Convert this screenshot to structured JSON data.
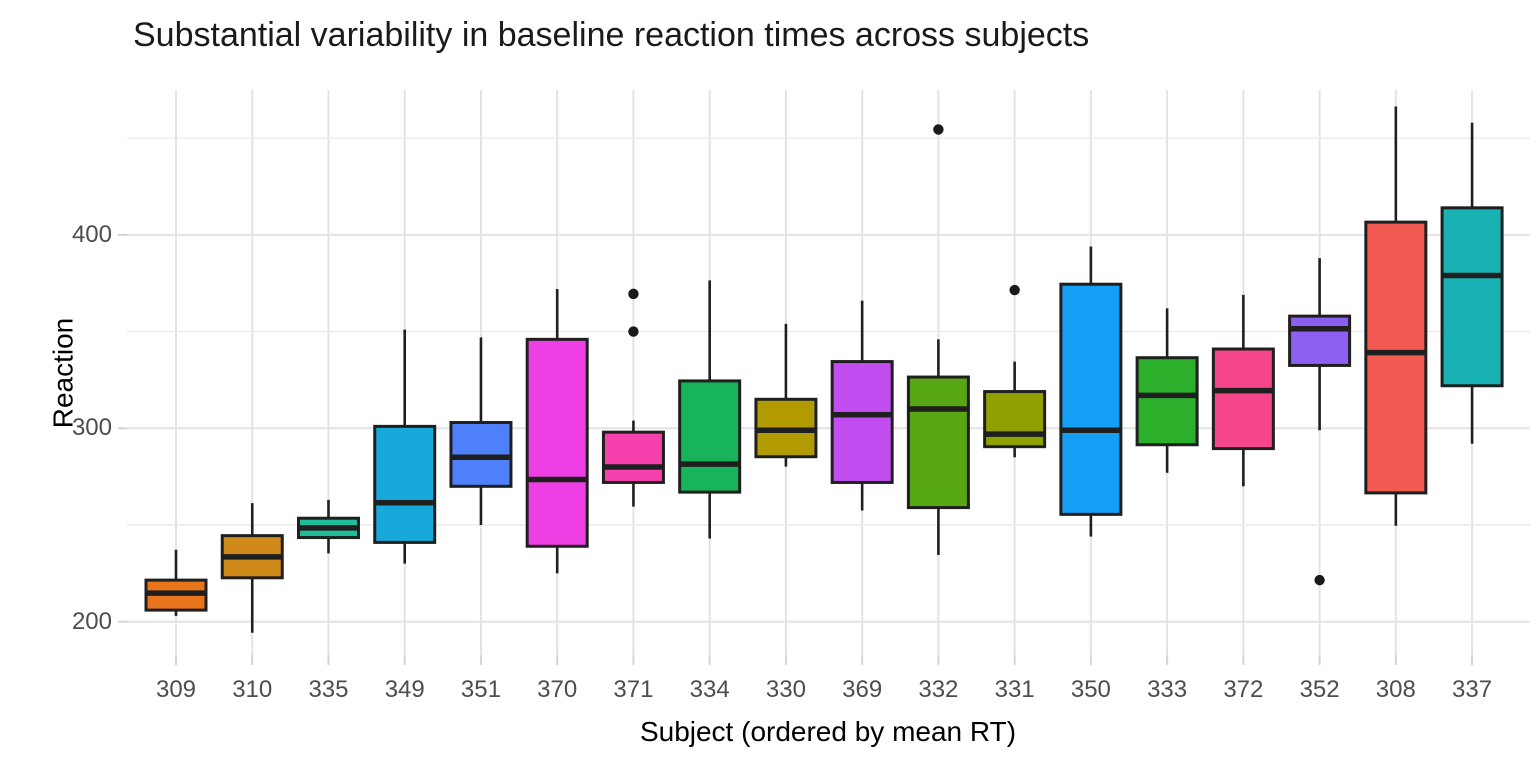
{
  "title": "Substantial variability in baseline reaction times across subjects",
  "chart_data": {
    "type": "box",
    "title": "Substantial variability in baseline reaction times across subjects",
    "xlabel": "Subject (ordered by mean RT)",
    "ylabel": "Reaction",
    "ylim": [
      183,
      474
    ],
    "y_major_ticks": [
      200,
      300,
      400
    ],
    "y_minor_ticks": [
      250,
      350,
      450
    ],
    "grid": "major-and-minor, light gray on white",
    "legend_position": "none",
    "categories": [
      "309",
      "310",
      "335",
      "349",
      "351",
      "370",
      "371",
      "334",
      "330",
      "369",
      "332",
      "331",
      "350",
      "333",
      "372",
      "352",
      "308",
      "337"
    ],
    "series": [
      {
        "subject": "309",
        "color": "#E8751C",
        "whisker_low": 203.0,
        "q1": 206.0,
        "median": 214.8,
        "q3": 221.5,
        "whisker_high": 237.2,
        "outliers": []
      },
      {
        "subject": "310",
        "color": "#D08A1A",
        "whisker_low": 194.3,
        "q1": 222.7,
        "median": 233.5,
        "q3": 244.5,
        "whisker_high": 261.3,
        "outliers": []
      },
      {
        "subject": "335",
        "color": "#1FBE9A",
        "whisker_low": 235.3,
        "q1": 243.5,
        "median": 248.5,
        "q3": 253.5,
        "whisker_high": 263.0,
        "outliers": []
      },
      {
        "subject": "349",
        "color": "#16A9D9",
        "whisker_low": 230.0,
        "q1": 241.0,
        "median": 261.5,
        "q3": 301.0,
        "whisker_high": 351.0,
        "outliers": []
      },
      {
        "subject": "351",
        "color": "#4F80FA",
        "whisker_low": 250.0,
        "q1": 270.0,
        "median": 285.0,
        "q3": 303.0,
        "whisker_high": 347.0,
        "outliers": []
      },
      {
        "subject": "370",
        "color": "#EE3FE5",
        "whisker_low": 225.0,
        "q1": 239.0,
        "median": 273.5,
        "q3": 346.0,
        "whisker_high": 372.0,
        "outliers": []
      },
      {
        "subject": "371",
        "color": "#F540AE",
        "whisker_low": 259.5,
        "q1": 272.0,
        "median": 280.0,
        "q3": 298.0,
        "whisker_high": 304.0,
        "outliers": [
          350.0,
          369.5
        ]
      },
      {
        "subject": "334",
        "color": "#17B45B",
        "whisker_low": 243.0,
        "q1": 267.0,
        "median": 281.5,
        "q3": 324.5,
        "whisker_high": 376.5,
        "outliers": []
      },
      {
        "subject": "330",
        "color": "#B29B00",
        "whisker_low": 280.2,
        "q1": 285.3,
        "median": 299.0,
        "q3": 315.0,
        "whisker_high": 354.0,
        "outliers": []
      },
      {
        "subject": "369",
        "color": "#C24DF0",
        "whisker_low": 257.5,
        "q1": 272.0,
        "median": 307.0,
        "q3": 334.5,
        "whisker_high": 366.0,
        "outliers": []
      },
      {
        "subject": "332",
        "color": "#57A614",
        "whisker_low": 234.5,
        "q1": 259.0,
        "median": 310.0,
        "q3": 326.5,
        "whisker_high": 346.0,
        "outliers": [
          454.5
        ]
      },
      {
        "subject": "331",
        "color": "#8FA000",
        "whisker_low": 285.0,
        "q1": 290.5,
        "median": 297.0,
        "q3": 319.0,
        "whisker_high": 334.5,
        "outliers": [
          371.5
        ]
      },
      {
        "subject": "350",
        "color": "#149EF5",
        "whisker_low": 244.0,
        "q1": 255.5,
        "median": 299.0,
        "q3": 374.5,
        "whisker_high": 394.0,
        "outliers": []
      },
      {
        "subject": "333",
        "color": "#2CB02C",
        "whisker_low": 277.0,
        "q1": 291.5,
        "median": 317.0,
        "q3": 336.5,
        "whisker_high": 362.0,
        "outliers": []
      },
      {
        "subject": "372",
        "color": "#F54689",
        "whisker_low": 270.0,
        "q1": 289.5,
        "median": 319.5,
        "q3": 341.0,
        "whisker_high": 369.0,
        "outliers": []
      },
      {
        "subject": "352",
        "color": "#8D5FF0",
        "whisker_low": 299.0,
        "q1": 332.5,
        "median": 351.5,
        "q3": 358.0,
        "whisker_high": 388.0,
        "outliers": [
          221.5
        ]
      },
      {
        "subject": "308",
        "color": "#F25A52",
        "whisker_low": 249.6,
        "q1": 266.6,
        "median": 339.1,
        "q3": 406.6,
        "whisker_high": 466.4,
        "outliers": []
      },
      {
        "subject": "337",
        "color": "#19B2B4",
        "whisker_low": 292.0,
        "q1": 322.0,
        "median": 379.0,
        "q3": 414.0,
        "whisker_high": 458.0,
        "outliers": []
      }
    ],
    "style": {
      "box_border_color": "#1f1f1f",
      "median_color": "#1f1f1f",
      "whisker_color": "#1f1f1f",
      "outlier_color": "#1a1a1a",
      "grid_major_color": "#e3e3e3",
      "grid_minor_color": "#ebebeb",
      "tick_label_color": "#4d4d4d",
      "title_color": "#1a1a1a"
    }
  }
}
